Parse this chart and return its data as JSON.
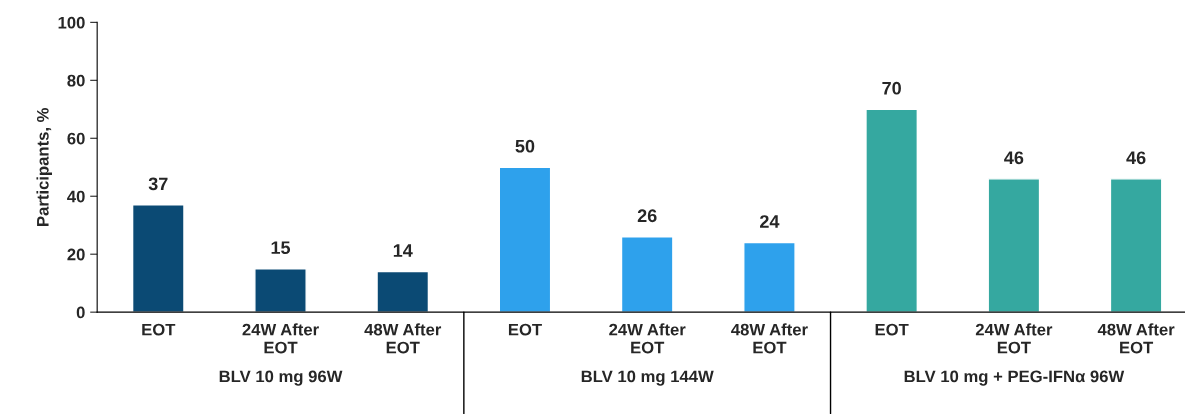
{
  "chart_data": {
    "type": "bar",
    "ylabel": "Participants, %",
    "categories": [
      "EOT",
      "24W After\nEOT",
      "48W After\nEOT",
      "EOT",
      "24W After\nEOT",
      "48W After\nEOT",
      "EOT",
      "24W After\nEOT",
      "48W After\nEOT"
    ],
    "values": [
      37,
      15,
      14,
      50,
      26,
      24,
      70,
      46,
      46
    ],
    "colors": [
      "#0b4a74",
      "#0b4a74",
      "#0b4a74",
      "#2ea1ec",
      "#2ea1ec",
      "#2ea1ec",
      "#35a8a0",
      "#35a8a0",
      "#35a8a0"
    ],
    "data_labels": true,
    "ylim": [
      0,
      100
    ],
    "yticks": [
      0,
      20,
      40,
      60,
      80,
      100
    ],
    "grid": false,
    "legend": false,
    "annotations": [
      "BLV 10 mg 96W",
      "BLV 10 mg 144W",
      "BLV 10 mg + PEG-IFNα 96W"
    ]
  }
}
